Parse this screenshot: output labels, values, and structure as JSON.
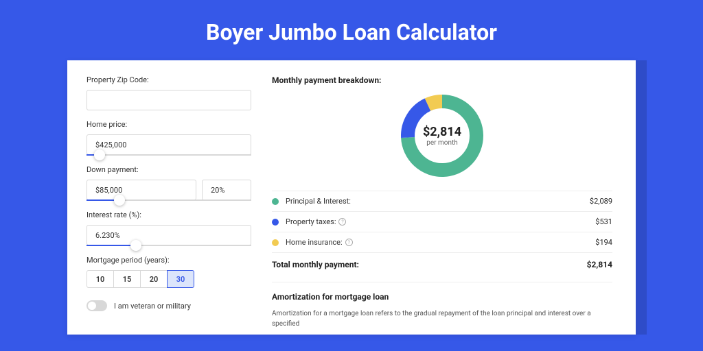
{
  "page": {
    "title": "Boyer Jumbo Loan Calculator"
  },
  "colors": {
    "page_bg": "#3658e8",
    "card_bg": "#ffffff",
    "accent": "#3658e8",
    "shadow": "#2e4cc8"
  },
  "form": {
    "zip": {
      "label": "Property Zip Code:",
      "value": ""
    },
    "home_price": {
      "label": "Home price:",
      "value": "$425,000",
      "slider_pct": 8
    },
    "down_payment": {
      "label": "Down payment:",
      "amount": "$85,000",
      "percent": "20%",
      "slider_pct": 20
    },
    "interest_rate": {
      "label": "Interest rate (%):",
      "value": "6.230%",
      "slider_pct": 30
    },
    "mortgage_period": {
      "label": "Mortgage period (years):",
      "options": [
        "10",
        "15",
        "20",
        "30"
      ],
      "selected": "30"
    },
    "veteran": {
      "label": "I am veteran or military",
      "checked": false
    }
  },
  "breakdown": {
    "title": "Monthly payment breakdown:",
    "donut": {
      "center_amount": "$2,814",
      "center_sub": "per month",
      "slices": [
        {
          "key": "principal_interest",
          "value": 2089,
          "pct": 74.2,
          "color": "#4db592"
        },
        {
          "key": "property_taxes",
          "value": 531,
          "pct": 18.9,
          "color": "#3658e8"
        },
        {
          "key": "home_insurance",
          "value": 194,
          "pct": 6.9,
          "color": "#f2cb52"
        }
      ],
      "stroke_width": 20,
      "radius": 50
    },
    "items": [
      {
        "dot": "#4db592",
        "label": "Principal & Interest:",
        "value": "$2,089",
        "info": false
      },
      {
        "dot": "#3658e8",
        "label": "Property taxes:",
        "value": "$531",
        "info": true
      },
      {
        "dot": "#f2cb52",
        "label": "Home insurance:",
        "value": "$194",
        "info": true
      }
    ],
    "total": {
      "label": "Total monthly payment:",
      "value": "$2,814"
    }
  },
  "amortization": {
    "title": "Amortization for mortgage loan",
    "text": "Amortization for a mortgage loan refers to the gradual repayment of the loan principal and interest over a specified"
  }
}
